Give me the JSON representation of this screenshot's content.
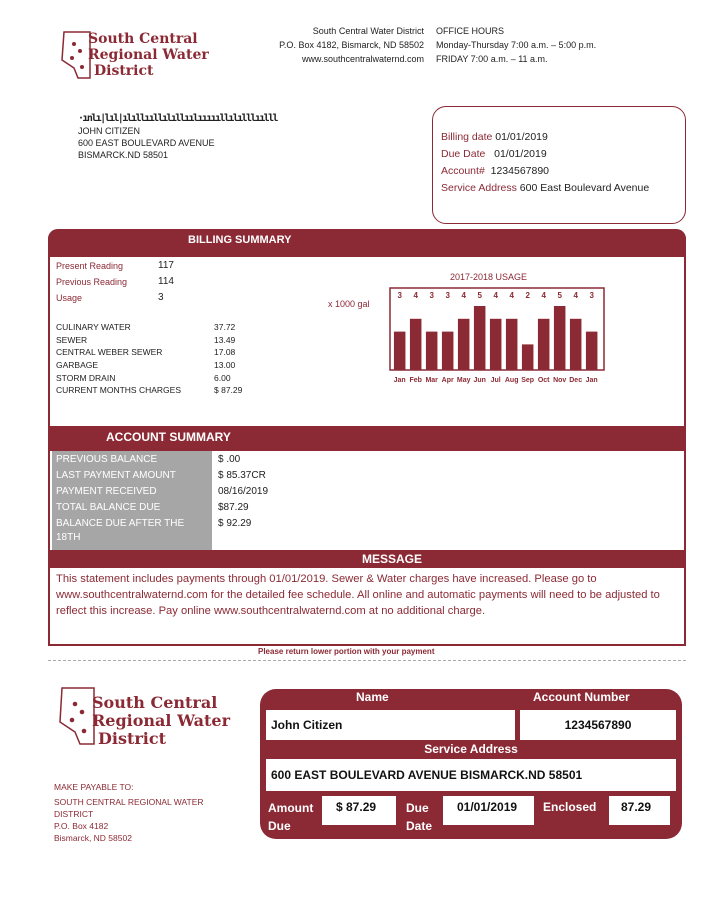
{
  "logo": {
    "text": [
      "South Central",
      "Regional Water",
      "District"
    ]
  },
  "district": {
    "name": "South Central Water District",
    "po": "P.O. Box 4182, Bismarck, ND 58502",
    "web": "www.southcentralwaternd.com"
  },
  "office": {
    "title": "OFFICE HOURS",
    "line1": "Monday-Thursday 7:00 a.m. – 5:00 p.m.",
    "line2": "FRIDAY 7:00 a.m. – 11 a.m."
  },
  "mailing": {
    "barcode": "·ınlı|lıl|ılıllııllılıllıılıııııllılılllıılll",
    "name": "JOHN CITIZEN",
    "street": "600 EAST BOULEVARD AVENUE",
    "city": "BISMARCK.ND 58501"
  },
  "info": {
    "billing_date_label": "Billing date",
    "billing_date": "01/01/2019",
    "due_date_label": "Due Date",
    "due_date": "01/01/2019",
    "account_label": "Account#",
    "account": "1234567890",
    "service_label": "Service Address",
    "service": "600 East Boulevard Avenue"
  },
  "billing": {
    "title": "BILLING SUMMARY",
    "readings": [
      {
        "label": "Present Reading",
        "value": "117"
      },
      {
        "label": "Previous Reading",
        "value": "114"
      },
      {
        "label": "Usage",
        "value": "3"
      }
    ],
    "charges": [
      {
        "label": "CULINARY WATER",
        "value": "37.72"
      },
      {
        "label": "SEWER",
        "value": "13.49"
      },
      {
        "label": "CENTRAL WEBER SEWER",
        "value": "17.08"
      },
      {
        "label": "GARBAGE",
        "value": "13.00"
      },
      {
        "label": "STORM DRAIN",
        "value": "6.00"
      },
      {
        "label": "CURRENT MONTHS CHARGES",
        "value": "$ 87.29"
      }
    ]
  },
  "chart_data": {
    "type": "bar",
    "title": "2017-2018 USAGE",
    "ylabel": "x 1000 gal",
    "categories": [
      "Jan",
      "Feb",
      "Mar",
      "Apr",
      "May",
      "Jun",
      "Jul",
      "Aug",
      "Sep",
      "Oct",
      "Nov",
      "Dec",
      "Jan"
    ],
    "values": [
      3,
      4,
      3,
      3,
      4,
      5,
      4,
      4,
      2,
      4,
      5,
      4,
      3
    ],
    "color": "#8b2a35"
  },
  "account": {
    "title": "ACCOUNT SUMMARY",
    "rows": [
      {
        "label": "PREVIOUS BALANCE",
        "value": "$ .00"
      },
      {
        "label": "LAST PAYMENT AMOUNT",
        "value": "$ 85.37CR"
      },
      {
        "label": "PAYMENT RECEIVED",
        "value": "08/16/2019"
      },
      {
        "label": "TOTAL BALANCE DUE",
        "value": "$87.29"
      },
      {
        "label": "BALANCE DUE AFTER THE 18TH",
        "value": "$ 92.29"
      }
    ]
  },
  "message": {
    "title": "MESSAGE",
    "text": "This statement includes payments through 01/01/2019. Sewer & Water charges have increased. Please go to www.southcentralwaternd.com for the detailed fee schedule. All online and automatic payments will need to be adjusted to reflect this increase. Pay online www.southcentralwaternd.com at no additional charge."
  },
  "return_note": "Please return lower portion with your payment",
  "payable": {
    "title": "MAKE PAYABLE TO:",
    "name": "SOUTH CENTRAL REGIONAL WATER DISTRICT",
    "po": "P.O. Box 4182",
    "city": "Bismarck, ND 58502"
  },
  "slip": {
    "name_label": "Name",
    "name": "John Citizen",
    "acct_label": "Account Number",
    "acct": "1234567890",
    "service_label": "Service Address",
    "service": "600 EAST BOULEVARD AVENUE BISMARCK.ND 58501",
    "amount_label": "Amount Due",
    "amount": "$ 87.29",
    "due_label": "Due Date",
    "due": "01/01/2019",
    "enclosed_label": "Enclosed",
    "enclosed": "87.29"
  },
  "colors": {
    "brand": "#8b2a35",
    "gray": "#a6a6a6"
  }
}
